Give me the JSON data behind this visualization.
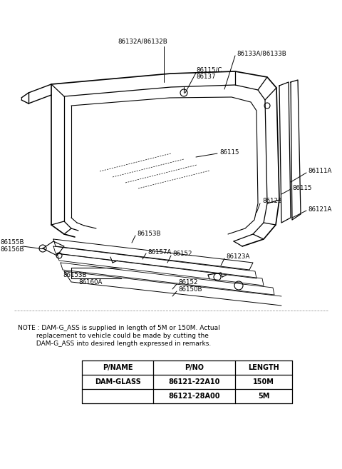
{
  "bg_color": "#ffffff",
  "fig_width": 4.8,
  "fig_height": 6.57,
  "dpi": 100,
  "note_line1": "NOTE : DAM-G_ASS is supplied in length of 5M or 150M. Actual",
  "note_line2": "         replacement to vehicle could be made by cutting the",
  "note_line3": "         DAM-G_ASS into desired length expressed in remarks.",
  "table_headers": [
    "P/NAME",
    "P/NO",
    "LENGTH"
  ],
  "table_rows": [
    [
      "DAM-GLASS",
      "86121-22A10",
      "150M"
    ],
    [
      "",
      "86121-28A00",
      "5M"
    ]
  ]
}
